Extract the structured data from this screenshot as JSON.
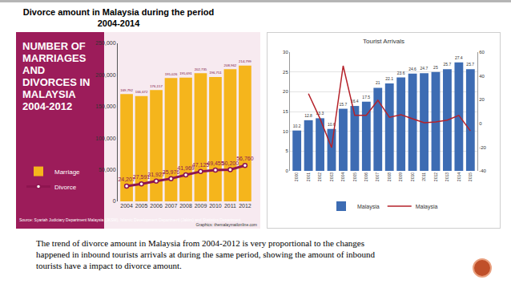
{
  "title": "Divorce amount in Malaysia during the period 2004-2014",
  "caption": "The trend of divorce amount in Malaysia from 2004-2012 is very proportional to the changes happened in inbound tourists arrivals at during the same period, showing the amount of inbound tourists have a impact to divorce amount.",
  "chart_data": [
    {
      "type": "bar",
      "title": "NUMBER OF MARRIAGES AND DIVORCES IN MALAYSIA 2004-2012",
      "source": "Source: Syariah Judiciary Department Malaysia (JKSM), Islamic Development Department (Jakim) and Statistics Department",
      "credit": "Graphics: themalaymailonline.com",
      "categories": [
        "2004",
        "2005",
        "2006",
        "2007",
        "2008",
        "2009",
        "2010",
        "2011",
        "2012"
      ],
      "series": [
        {
          "name": "Marriage",
          "type": "bar",
          "color": "#f5b51c",
          "values": [
            169792,
            166672,
            176157,
            195026,
            195691,
            202735,
            196751,
            208962,
            214799
          ],
          "value_labels": [
            "169,792",
            "166,672",
            "176,157",
            "195,026",
            "195,691",
            "202,735",
            "196,751",
            "208,962",
            "214,799"
          ]
        },
        {
          "name": "Divorce",
          "type": "line",
          "color": "#8e1550",
          "marker": "circle",
          "values": [
            24207,
            27591,
            31927,
            35976,
            41969,
            47125,
            49455,
            50200,
            56760
          ],
          "value_labels": [
            "24,207",
            "27,591",
            "31,927",
            "35,976",
            "41,969",
            "47,125",
            "49,455",
            "50,200",
            "56,760"
          ]
        }
      ],
      "ylim": [
        0,
        250000
      ],
      "yticks": [
        0,
        {
          "value": 50000,
          "label": "50,000"
        },
        {
          "value": 100000,
          "label": "100,000"
        },
        {
          "value": 150000,
          "label": "150,000"
        },
        {
          "value": 200000,
          "label": "200,000"
        },
        {
          "value": 250000,
          "label": "250,000"
        }
      ],
      "grid": false,
      "data_labels": true,
      "legend": "bottom left"
    },
    {
      "type": "bar",
      "title": "Tourist Arrivals",
      "categories": [
        "2000",
        "2001",
        "2002",
        "2003",
        "2004",
        "2005",
        "2006",
        "2007",
        "2008",
        "2009",
        "2010",
        "2011",
        "2012",
        "2013",
        "2014",
        "2015"
      ],
      "series": [
        {
          "name": "Malaysia",
          "type": "bar",
          "color": "#3d6cb3",
          "values": [
            10.2,
            12.8,
            13.3,
            10.6,
            15.7,
            16.4,
            17.5,
            21,
            22.1,
            23.6,
            24.6,
            24.7,
            25,
            25.7,
            27.4,
            25.7
          ]
        },
        {
          "name": "Malaysia",
          "type": "line",
          "color": "#b5222a",
          "axis": "y2",
          "values": [
            null,
            25,
            4,
            -20.4,
            48.5,
            6.8,
            6.8,
            19.5,
            5.1,
            7.2,
            3.9,
            0.6,
            1.3,
            2.7,
            6.7,
            -6.3
          ]
        }
      ],
      "ylim": [
        0,
        30
      ],
      "yticks": [
        0,
        5,
        10,
        15,
        20,
        25,
        30
      ],
      "y2lim": [
        -40,
        60
      ],
      "y2ticks": [
        -40,
        -20,
        0,
        20,
        40,
        60
      ],
      "grid": true,
      "data_labels": true,
      "legend": "bottom"
    }
  ]
}
